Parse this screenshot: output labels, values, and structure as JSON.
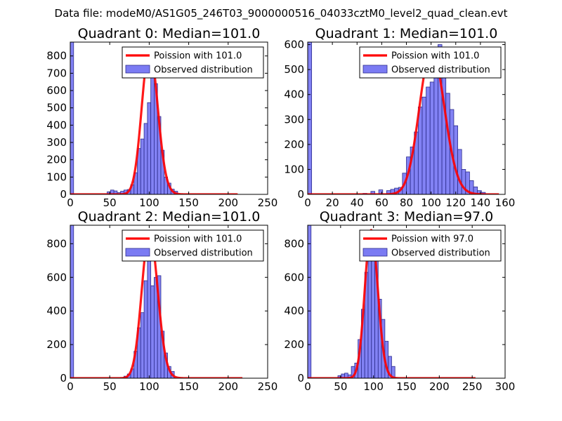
{
  "suptitle": "Data file: modeM0/AS1G05_246T03_9000000516_04033cztM0_level2_quad_clean.evt",
  "colors": {
    "bar_fill": "#7b7bf3",
    "bar_edge": "#2c2c8c",
    "fit_line": "#ff0000",
    "axis": "#000000"
  },
  "chart_data": [
    {
      "type": "bar",
      "title": "Quadrant 0: Median=101.0",
      "xlim": [
        0,
        250
      ],
      "ylim": [
        0,
        880
      ],
      "xticks": [
        0,
        50,
        100,
        150,
        200,
        250
      ],
      "yticks": [
        0,
        100,
        200,
        300,
        400,
        500,
        600,
        700,
        800
      ],
      "legend_line": "Poission with 101.0",
      "legend_bar": "Observed distribution",
      "mean": 101.0,
      "fit_peak": 840,
      "fit_range": [
        0,
        212
      ],
      "bin_width": 4.25,
      "bins": [
        [
          0,
          880
        ],
        [
          46.75,
          15
        ],
        [
          51,
          25
        ],
        [
          55.25,
          20
        ],
        [
          59.5,
          10
        ],
        [
          63.75,
          18
        ],
        [
          68,
          25
        ],
        [
          72.25,
          28
        ],
        [
          76.5,
          55
        ],
        [
          80.75,
          125
        ],
        [
          85,
          265
        ],
        [
          89.25,
          320
        ],
        [
          93.5,
          410
        ],
        [
          97.75,
          530
        ],
        [
          102,
          830
        ],
        [
          106.25,
          640
        ],
        [
          110.5,
          450
        ],
        [
          114.75,
          255
        ],
        [
          119,
          100
        ],
        [
          123.25,
          65
        ],
        [
          127.5,
          30
        ],
        [
          131.75,
          18
        ]
      ]
    },
    {
      "type": "bar",
      "title": "Quadrant 1: Median=101.0",
      "xlim": [
        0,
        160
      ],
      "ylim": [
        0,
        610
      ],
      "xticks": [
        0,
        20,
        40,
        60,
        80,
        100,
        120,
        140,
        160
      ],
      "yticks": [
        0,
        100,
        200,
        300,
        400,
        500,
        600
      ],
      "legend_line": "Poission with 101.0",
      "legend_bar": "Observed distribution",
      "mean": 101.0,
      "fit_peak": 580,
      "fit_range": [
        0,
        155
      ],
      "bin_width": 3.2,
      "bins": [
        [
          0,
          610
        ],
        [
          44.8,
          4
        ],
        [
          51.2,
          12
        ],
        [
          57.6,
          18
        ],
        [
          64,
          15
        ],
        [
          67.2,
          20
        ],
        [
          70.4,
          25
        ],
        [
          73.6,
          28
        ],
        [
          76.8,
          85
        ],
        [
          80,
          150
        ],
        [
          83.2,
          190
        ],
        [
          86.4,
          250
        ],
        [
          89.6,
          350
        ],
        [
          92.8,
          390
        ],
        [
          96,
          430
        ],
        [
          99.2,
          450
        ],
        [
          102.4,
          530
        ],
        [
          105.6,
          600
        ],
        [
          108.8,
          500
        ],
        [
          112,
          405
        ],
        [
          115.2,
          340
        ],
        [
          118.4,
          275
        ],
        [
          121.6,
          180
        ],
        [
          124.8,
          100
        ],
        [
          128,
          90
        ],
        [
          131.2,
          55
        ],
        [
          134.4,
          30
        ],
        [
          137.6,
          15
        ],
        [
          140.8,
          8
        ]
      ]
    },
    {
      "type": "bar",
      "title": "Quadrant 2: Median=101.0",
      "xlim": [
        0,
        250
      ],
      "ylim": [
        0,
        910
      ],
      "xticks": [
        0,
        50,
        100,
        150,
        200,
        250
      ],
      "yticks": [
        0,
        200,
        400,
        600,
        800
      ],
      "legend_line": "Poission with 101.0",
      "legend_bar": "Observed distribution",
      "mean": 101.0,
      "fit_peak": 870,
      "fit_range": [
        0,
        218
      ],
      "bin_width": 4.25,
      "bins": [
        [
          0,
          910
        ],
        [
          68,
          12
        ],
        [
          72.25,
          25
        ],
        [
          76.5,
          55
        ],
        [
          80.75,
          160
        ],
        [
          85,
          300
        ],
        [
          89.25,
          390
        ],
        [
          93.5,
          580
        ],
        [
          97.75,
          880
        ],
        [
          102,
          550
        ],
        [
          106.25,
          600
        ],
        [
          110.5,
          610
        ],
        [
          114.75,
          280
        ],
        [
          119,
          150
        ],
        [
          123.25,
          70
        ],
        [
          127.5,
          40
        ]
      ]
    },
    {
      "type": "bar",
      "title": "Quadrant 3: Median=97.0",
      "xlim": [
        0,
        300
      ],
      "ylim": [
        0,
        910
      ],
      "xticks": [
        0,
        50,
        100,
        150,
        200,
        250,
        300
      ],
      "yticks": [
        0,
        200,
        400,
        600,
        800
      ],
      "legend_line": "Poission with 97.0",
      "legend_bar": "Observed distribution",
      "mean": 97.0,
      "fit_peak": 880,
      "fit_range": [
        0,
        255
      ],
      "bin_width": 5.1,
      "bins": [
        [
          0,
          910
        ],
        [
          45.9,
          15
        ],
        [
          51,
          25
        ],
        [
          56.1,
          30
        ],
        [
          61.2,
          20
        ],
        [
          66.3,
          70
        ],
        [
          71.4,
          90
        ],
        [
          76.5,
          230
        ],
        [
          81.6,
          410
        ],
        [
          86.7,
          630
        ],
        [
          91.8,
          870
        ],
        [
          96.9,
          840
        ],
        [
          102,
          830
        ],
        [
          107.1,
          470
        ],
        [
          112.2,
          350
        ],
        [
          117.3,
          220
        ],
        [
          122.4,
          130
        ],
        [
          127.5,
          70
        ]
      ]
    }
  ]
}
